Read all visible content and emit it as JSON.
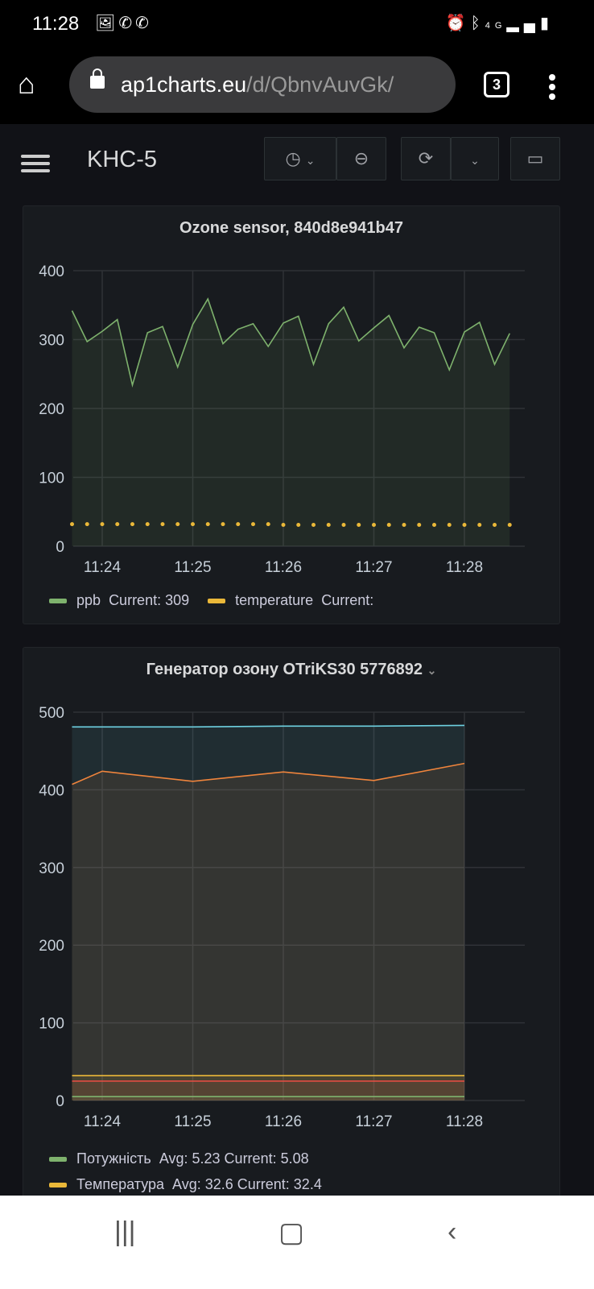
{
  "status_bar": {
    "time": "11:28",
    "left_icons": [
      "image-icon",
      "viber-icon",
      "viber-icon"
    ],
    "right_icons": [
      "alarm-icon",
      "bluetooth-icon",
      "4g-icon",
      "signal-icon",
      "battery-icon"
    ],
    "network": "4G"
  },
  "browser": {
    "url_host": "ap1charts.eu",
    "url_path": "/d/QbnvAuvGk/",
    "tab_count": "3"
  },
  "dashboard": {
    "title": "KHC-5"
  },
  "panels": [
    {
      "title": "Ozone sensor, 840d8e941b47",
      "legend": [
        {
          "name": "ppb",
          "stats": "Current: 309",
          "color": "#7eb26d"
        },
        {
          "name": "temperature",
          "stats": "Current:",
          "color": "#eab839"
        }
      ]
    },
    {
      "title": "Генератор озону OTriKS30 5776892",
      "legend": [
        {
          "name": "Потужність",
          "stats": "Avg: 5.23  Current: 5.08",
          "color": "#7eb26d"
        },
        {
          "name": "Температура",
          "stats": "Avg: 32.6  Current: 32.4",
          "color": "#eab839"
        }
      ]
    }
  ],
  "chart_data": [
    {
      "type": "line",
      "ylim": [
        0,
        400
      ],
      "yticks": [
        0,
        100,
        200,
        300,
        400
      ],
      "xticks": [
        "11:24",
        "11:25",
        "11:26",
        "11:27",
        "11:28"
      ],
      "grid": true,
      "legend": "bottom",
      "x": [
        "11:23:40",
        "11:23:50",
        "11:24:00",
        "11:24:10",
        "11:24:20",
        "11:24:30",
        "11:24:40",
        "11:24:50",
        "11:25:00",
        "11:25:10",
        "11:25:20",
        "11:25:30",
        "11:25:40",
        "11:25:50",
        "11:26:00",
        "11:26:10",
        "11:26:20",
        "11:26:30",
        "11:26:40",
        "11:26:50",
        "11:27:00",
        "11:27:10",
        "11:27:20",
        "11:27:30",
        "11:27:40",
        "11:27:50",
        "11:28:00",
        "11:28:10",
        "11:28:20",
        "11:28:30"
      ],
      "series": [
        {
          "name": "ppb",
          "color": "#7eb26d",
          "style": "line-fill",
          "values": [
            342,
            297,
            312,
            329,
            234,
            310,
            319,
            260,
            322,
            359,
            294,
            315,
            323,
            290,
            324,
            334,
            264,
            323,
            347,
            298,
            317,
            335,
            288,
            318,
            310,
            256,
            311,
            325,
            264,
            309
          ]
        },
        {
          "name": "temperature",
          "color": "#eab839",
          "style": "points",
          "values": [
            32,
            32,
            32,
            32,
            32,
            32,
            32,
            32,
            32,
            32,
            32,
            32,
            32,
            32,
            31,
            31,
            31,
            31,
            31,
            31,
            31,
            31,
            31,
            31,
            31,
            31,
            31,
            31,
            31,
            31
          ]
        }
      ]
    },
    {
      "type": "line",
      "ylim": [
        0,
        500
      ],
      "yticks": [
        0,
        100,
        200,
        300,
        400,
        500
      ],
      "xticks": [
        "11:24",
        "11:25",
        "11:26",
        "11:27",
        "11:28"
      ],
      "grid": true,
      "legend": "bottom",
      "x": [
        "11:23:40",
        "11:24:00",
        "11:25:00",
        "11:26:00",
        "11:27:00",
        "11:28:00"
      ],
      "series": [
        {
          "color": "#6ed0e0",
          "values": [
            481,
            481,
            481,
            482,
            482,
            483
          ]
        },
        {
          "color": "#ef843c",
          "values": [
            407,
            424,
            411,
            423,
            412,
            434
          ]
        },
        {
          "name": "Температура",
          "color": "#eab839",
          "values": [
            32,
            32,
            32,
            32,
            32,
            32
          ]
        },
        {
          "color": "#e24d42",
          "values": [
            25,
            25,
            25,
            25,
            25,
            25
          ]
        },
        {
          "name": "Потужність",
          "color": "#7eb26d",
          "values": [
            5,
            5,
            5,
            5,
            5,
            5
          ]
        }
      ]
    }
  ]
}
